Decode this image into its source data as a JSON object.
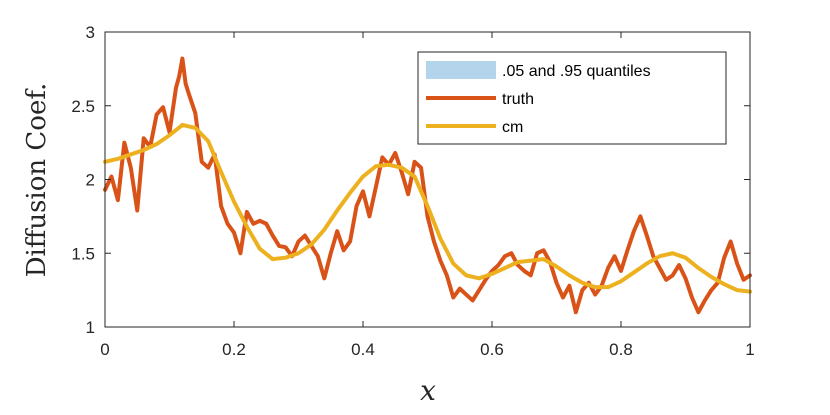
{
  "chart_data": {
    "type": "line",
    "xlabel": "x",
    "ylabel": "Diffusion Coef.",
    "xlim": [
      0,
      1
    ],
    "ylim": [
      1,
      3
    ],
    "xticks": [
      0,
      0.2,
      0.4,
      0.6,
      0.8,
      1
    ],
    "xtick_labels": [
      "0",
      "0.2",
      "0.4",
      "0.6",
      "0.8",
      "1"
    ],
    "yticks": [
      1,
      1.5,
      2,
      2.5,
      3
    ],
    "ytick_labels": [
      "1",
      "1.5",
      "2",
      "2.5",
      "3"
    ],
    "grid": false,
    "legend_position": "top-right",
    "legend": [
      {
        "label": ".05 and .95 quantiles",
        "kind": "patch",
        "color": "#b3d4ea"
      },
      {
        "label": "truth",
        "kind": "line",
        "color": "#d95319"
      },
      {
        "label": "cm",
        "kind": "line",
        "color": "#edb120"
      }
    ],
    "series": [
      {
        "name": "truth",
        "color": "#d95319",
        "x": [
          0,
          0.01,
          0.02,
          0.03,
          0.04,
          0.05,
          0.06,
          0.07,
          0.08,
          0.09,
          0.1,
          0.11,
          0.115,
          0.12,
          0.125,
          0.13,
          0.14,
          0.15,
          0.16,
          0.17,
          0.18,
          0.19,
          0.2,
          0.21,
          0.22,
          0.23,
          0.24,
          0.25,
          0.26,
          0.27,
          0.28,
          0.29,
          0.3,
          0.31,
          0.32,
          0.33,
          0.34,
          0.35,
          0.36,
          0.37,
          0.38,
          0.39,
          0.4,
          0.41,
          0.42,
          0.43,
          0.44,
          0.45,
          0.46,
          0.47,
          0.48,
          0.49,
          0.5,
          0.51,
          0.52,
          0.53,
          0.54,
          0.55,
          0.56,
          0.57,
          0.58,
          0.59,
          0.6,
          0.61,
          0.62,
          0.63,
          0.64,
          0.65,
          0.66,
          0.67,
          0.68,
          0.69,
          0.7,
          0.71,
          0.72,
          0.73,
          0.74,
          0.75,
          0.76,
          0.77,
          0.78,
          0.79,
          0.8,
          0.81,
          0.82,
          0.83,
          0.84,
          0.85,
          0.86,
          0.87,
          0.88,
          0.89,
          0.9,
          0.91,
          0.92,
          0.93,
          0.94,
          0.95,
          0.96,
          0.97,
          0.98,
          0.99,
          1.0
        ],
        "values": [
          1.93,
          2.02,
          1.86,
          2.25,
          2.08,
          1.79,
          2.28,
          2.22,
          2.44,
          2.49,
          2.32,
          2.62,
          2.7,
          2.82,
          2.65,
          2.58,
          2.45,
          2.12,
          2.08,
          2.17,
          1.82,
          1.7,
          1.64,
          1.5,
          1.78,
          1.7,
          1.72,
          1.7,
          1.62,
          1.55,
          1.54,
          1.48,
          1.58,
          1.62,
          1.55,
          1.48,
          1.33,
          1.5,
          1.65,
          1.52,
          1.58,
          1.82,
          1.92,
          1.75,
          1.95,
          2.15,
          2.1,
          2.18,
          2.05,
          1.9,
          2.12,
          2.08,
          1.75,
          1.58,
          1.45,
          1.35,
          1.2,
          1.26,
          1.22,
          1.18,
          1.25,
          1.32,
          1.38,
          1.42,
          1.48,
          1.5,
          1.42,
          1.38,
          1.35,
          1.5,
          1.52,
          1.44,
          1.3,
          1.2,
          1.28,
          1.1,
          1.25,
          1.3,
          1.22,
          1.28,
          1.4,
          1.48,
          1.38,
          1.52,
          1.65,
          1.75,
          1.62,
          1.48,
          1.4,
          1.32,
          1.35,
          1.42,
          1.33,
          1.2,
          1.1,
          1.18,
          1.25,
          1.3,
          1.47,
          1.58,
          1.43,
          1.32,
          1.35
        ]
      },
      {
        "name": "cm",
        "color": "#edb120",
        "x": [
          0,
          0.02,
          0.04,
          0.06,
          0.08,
          0.1,
          0.12,
          0.14,
          0.16,
          0.18,
          0.2,
          0.22,
          0.24,
          0.26,
          0.28,
          0.3,
          0.32,
          0.34,
          0.36,
          0.38,
          0.4,
          0.42,
          0.44,
          0.46,
          0.48,
          0.5,
          0.52,
          0.54,
          0.56,
          0.58,
          0.6,
          0.62,
          0.64,
          0.66,
          0.68,
          0.7,
          0.72,
          0.74,
          0.76,
          0.78,
          0.8,
          0.82,
          0.84,
          0.86,
          0.88,
          0.9,
          0.92,
          0.94,
          0.96,
          0.98,
          1.0
        ],
        "values": [
          2.12,
          2.14,
          2.17,
          2.2,
          2.24,
          2.3,
          2.37,
          2.35,
          2.26,
          2.05,
          1.85,
          1.68,
          1.53,
          1.46,
          1.47,
          1.5,
          1.56,
          1.66,
          1.79,
          1.91,
          2.02,
          2.09,
          2.1,
          2.08,
          2.02,
          1.82,
          1.6,
          1.43,
          1.35,
          1.33,
          1.36,
          1.4,
          1.44,
          1.45,
          1.46,
          1.41,
          1.35,
          1.3,
          1.27,
          1.27,
          1.31,
          1.37,
          1.43,
          1.48,
          1.5,
          1.47,
          1.4,
          1.34,
          1.29,
          1.25,
          1.24
        ]
      }
    ]
  }
}
